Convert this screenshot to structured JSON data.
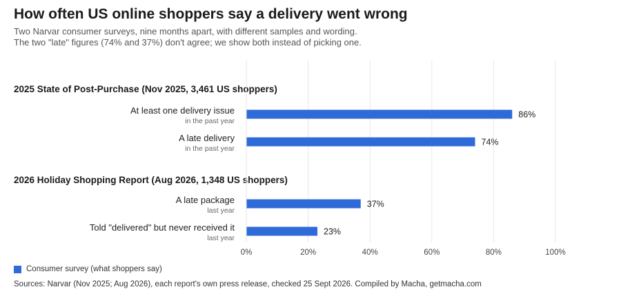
{
  "header": {
    "title": "How often US online shoppers say a delivery went wrong",
    "subtitle_lines": [
      "Two Narvar consumer surveys, nine months apart, with different samples and wording.",
      "The two \"late\" figures (74% and 37%) don't agree; we show both instead of picking one."
    ]
  },
  "chart_data": {
    "type": "bar",
    "orientation": "horizontal",
    "xlim": [
      0,
      100
    ],
    "xticks": [
      "0%",
      "20%",
      "40%",
      "60%",
      "80%",
      "100%"
    ],
    "grid": true,
    "bar_color": "#2f6ad9",
    "value_suffix": "%",
    "groups": [
      {
        "title": "2025 State of Post-Purchase (Nov 2025, 3,461 US shoppers)",
        "bars": [
          {
            "label": "At least one delivery issue",
            "sublabel": "in the past year",
            "value": 86
          },
          {
            "label": "A late delivery",
            "sublabel": "in the past year",
            "value": 74
          }
        ]
      },
      {
        "title": "2026 Holiday Shopping Report (Aug 2026, 1,348 US shoppers)",
        "bars": [
          {
            "label": "A late package",
            "sublabel": "last year",
            "value": 37
          },
          {
            "label": "Told \"delivered\" but never received it",
            "sublabel": "last year",
            "value": 23
          }
        ]
      }
    ]
  },
  "legend": {
    "label": "Consumer survey (what shoppers say)"
  },
  "footer": {
    "sources": "Sources: Narvar (Nov 2025; Aug 2026), each report's own press release, checked 25 Sept 2026. Compiled by Macha, getmacha.com"
  }
}
